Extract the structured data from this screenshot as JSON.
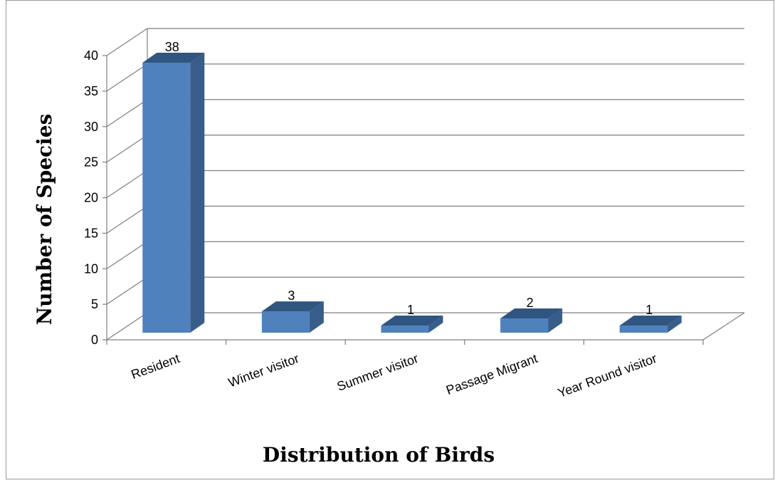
{
  "chart_data": {
    "type": "bar",
    "style": "3d-column",
    "categories": [
      "Resident",
      "Winter visitor",
      "Summer visitor",
      "Passage Migrant",
      "Year Round visitor"
    ],
    "series": [
      {
        "values": [
          38,
          3,
          1,
          2,
          1
        ]
      }
    ],
    "data_labels": [
      "38",
      "3",
      "1",
      "2",
      "1"
    ],
    "title": "",
    "xlabel": "Distribution of Birds",
    "ylabel": "Number of Species",
    "ylim": [
      0,
      40
    ],
    "yticks": [
      0,
      5,
      10,
      15,
      20,
      25,
      30,
      35,
      40
    ],
    "ytick_labels": [
      "0",
      "5",
      "10",
      "15",
      "20",
      "25",
      "30",
      "35",
      "40"
    ],
    "grid": true,
    "legend": "none",
    "colors": {
      "bar_front": "#4f81bd",
      "bar_side": "#385d8a",
      "bar_top": "#2f5580",
      "grid": "#7f7f7f",
      "text": "#000000"
    }
  }
}
